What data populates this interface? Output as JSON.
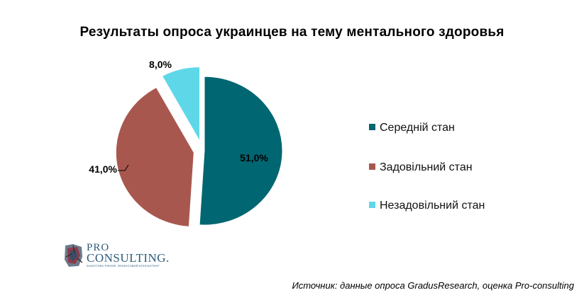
{
  "chart_data": {
    "type": "pie",
    "title": "Результаты опроса украинцев на тему ментального здоровья",
    "slices": [
      {
        "label": "Середній  стан",
        "value": 51.0,
        "value_label": "51,0%",
        "color": "#006671"
      },
      {
        "label": "Задовільний  стан",
        "value": 41.0,
        "value_label": "41,0%",
        "color": "#A8574F"
      },
      {
        "label": "Незадовільний  стан",
        "value": 8.0,
        "value_label": "8,0%",
        "color": "#5ED8E8"
      }
    ],
    "legend_position": "right"
  },
  "logo": {
    "pro": "PRO",
    "consulting": "CONSULTING.",
    "tagline": "АНАЛІТИКА РИНКІВ. ФІНАНСОВИЙ КОНСАЛТИНГ"
  },
  "source": "Источник: данные опроса GradusResearch, оценка Pro-consulting"
}
